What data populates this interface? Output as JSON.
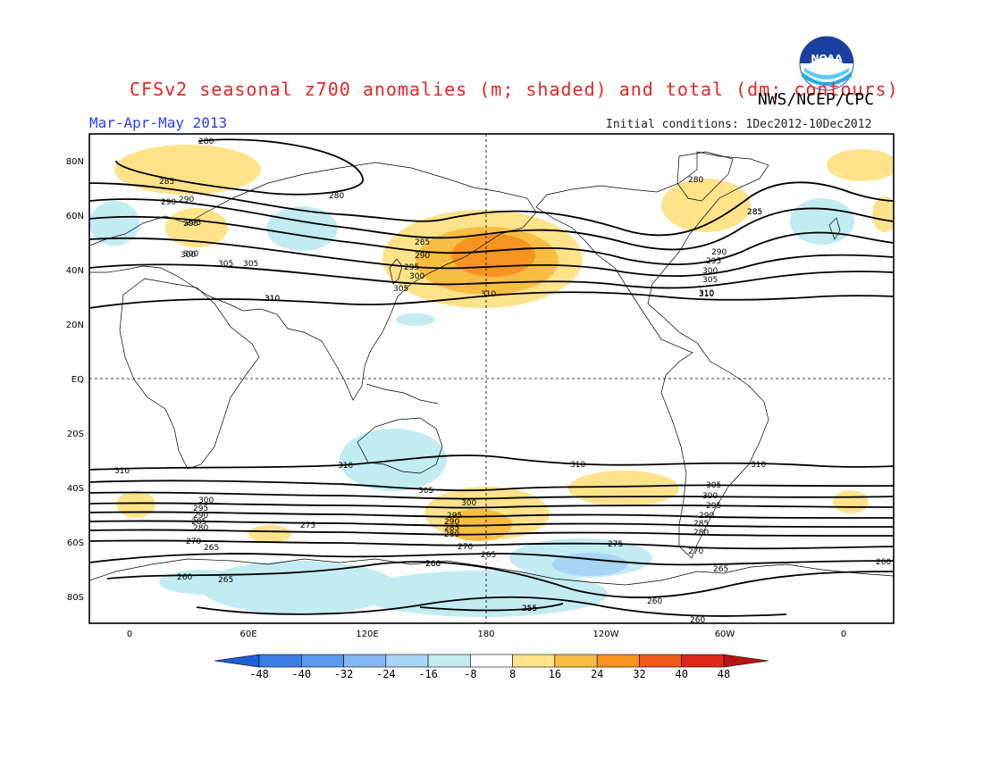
{
  "header": {
    "title": "CFSv2 seasonal z700 anomalies (m; shaded) and total (dm; contours)",
    "agency": "NWS/NCEP/CPC",
    "season": "Mar-Apr-May 2013",
    "initial_conditions": "Initial conditions: 1Dec2012-10Dec2012",
    "logo_text": "NOAA"
  },
  "map": {
    "lat_labels": [
      "80N",
      "60N",
      "40N",
      "20N",
      "EQ",
      "20S",
      "40S",
      "60S",
      "80S"
    ],
    "lon_labels": [
      "0",
      "60E",
      "120E",
      "180",
      "120W",
      "60W",
      "0"
    ],
    "contour_labels": [
      "280",
      "285",
      "290",
      "295",
      "300",
      "305",
      "310",
      "280",
      "285",
      "290",
      "295",
      "300",
      "305",
      "310",
      "310",
      "310",
      "310",
      "310",
      "305",
      "300",
      "295",
      "290",
      "285",
      "280",
      "275",
      "270",
      "265",
      "260",
      "255",
      "300",
      "295",
      "290",
      "285",
      "280",
      "275",
      "270",
      "265",
      "260",
      "305",
      "300",
      "295",
      "290",
      "285",
      "280",
      "270",
      "265",
      "260",
      "310",
      "285",
      "290",
      "295",
      "300",
      "305",
      "310",
      "290",
      "295",
      "300",
      "305",
      "310",
      "280",
      "285",
      "260",
      "265",
      "255",
      "260",
      "260"
    ]
  },
  "colorbar": {
    "ticks": [
      "-48",
      "-40",
      "-32",
      "-24",
      "-16",
      "-8",
      "8",
      "16",
      "24",
      "32",
      "40",
      "48"
    ],
    "colors": [
      "#1e5fd8",
      "#3b7fe6",
      "#5a98ee",
      "#84b6f3",
      "#a8d4f5",
      "#c2ecf2",
      "#ffffff",
      "#fee38a",
      "#f9bd44",
      "#f69321",
      "#f0571a",
      "#e0261b",
      "#b51512"
    ]
  }
}
